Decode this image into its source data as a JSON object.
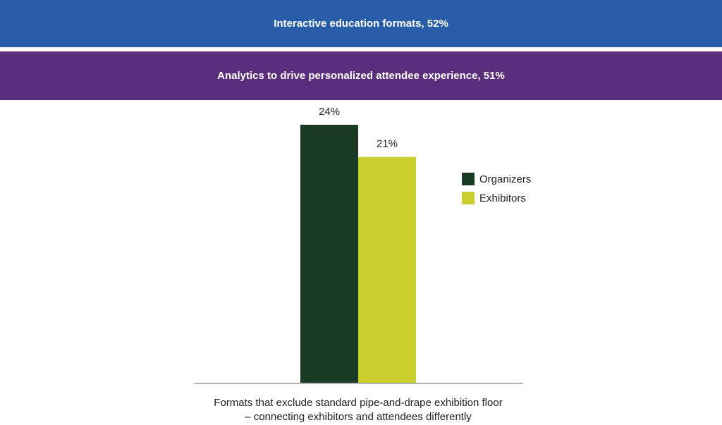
{
  "banners": [
    {
      "text": "Interactive education formats, 52%"
    },
    {
      "text": "Analytics to drive personalized attendee experience, 51%"
    }
  ],
  "chart_data": {
    "type": "bar",
    "categories": [
      "Formats that exclude standard pipe-and-drape exhibition floor – connecting exhibitors and attendees differently"
    ],
    "series": [
      {
        "name": "Organizers",
        "color": "#1b3a24",
        "values": [
          24
        ],
        "value_labels": [
          "24%"
        ]
      },
      {
        "name": "Exhibitors",
        "color": "#cbcf2e",
        "values": [
          21
        ],
        "value_labels": [
          "21%"
        ]
      }
    ]
  }
}
